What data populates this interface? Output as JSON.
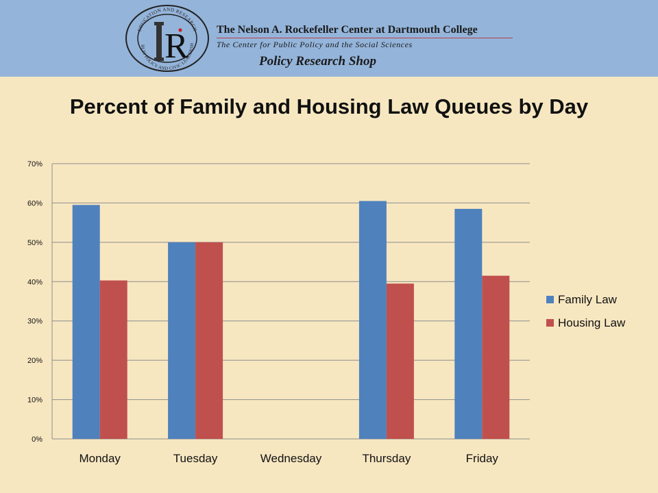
{
  "header": {
    "seal_ring_top": "EDUCATION AND RESEARCH",
    "seal_ring_bottom": "PUBLIC POLICY AND CIVIC LEADERSHIP",
    "seal_letter": "R",
    "org_title": "The Nelson A. Rockefeller Center at Dartmouth College",
    "org_subtitle": "The Center for Public Policy and the Social Sciences",
    "shop_name": "Policy Research Shop",
    "colors": {
      "band": "#94b4da",
      "accent": "#b5424a"
    }
  },
  "chart_data": {
    "type": "bar",
    "title": "Percent of Family and Housing Law Queues by Day",
    "categories": [
      "Monday",
      "Tuesday",
      "Wednesday",
      "Thursday",
      "Friday"
    ],
    "series": [
      {
        "name": "Family Law",
        "color": "#4f81bd",
        "values": [
          59.5,
          50,
          0,
          60.5,
          58.5
        ]
      },
      {
        "name": "Housing Law",
        "color": "#c0504d",
        "values": [
          40.3,
          50,
          0,
          39.5,
          41.5
        ]
      }
    ],
    "ylim": [
      0,
      70
    ],
    "yticks": [
      "0%",
      "10%",
      "20%",
      "30%",
      "40%",
      "50%",
      "60%",
      "70%"
    ],
    "grid": true,
    "legend": "right"
  }
}
